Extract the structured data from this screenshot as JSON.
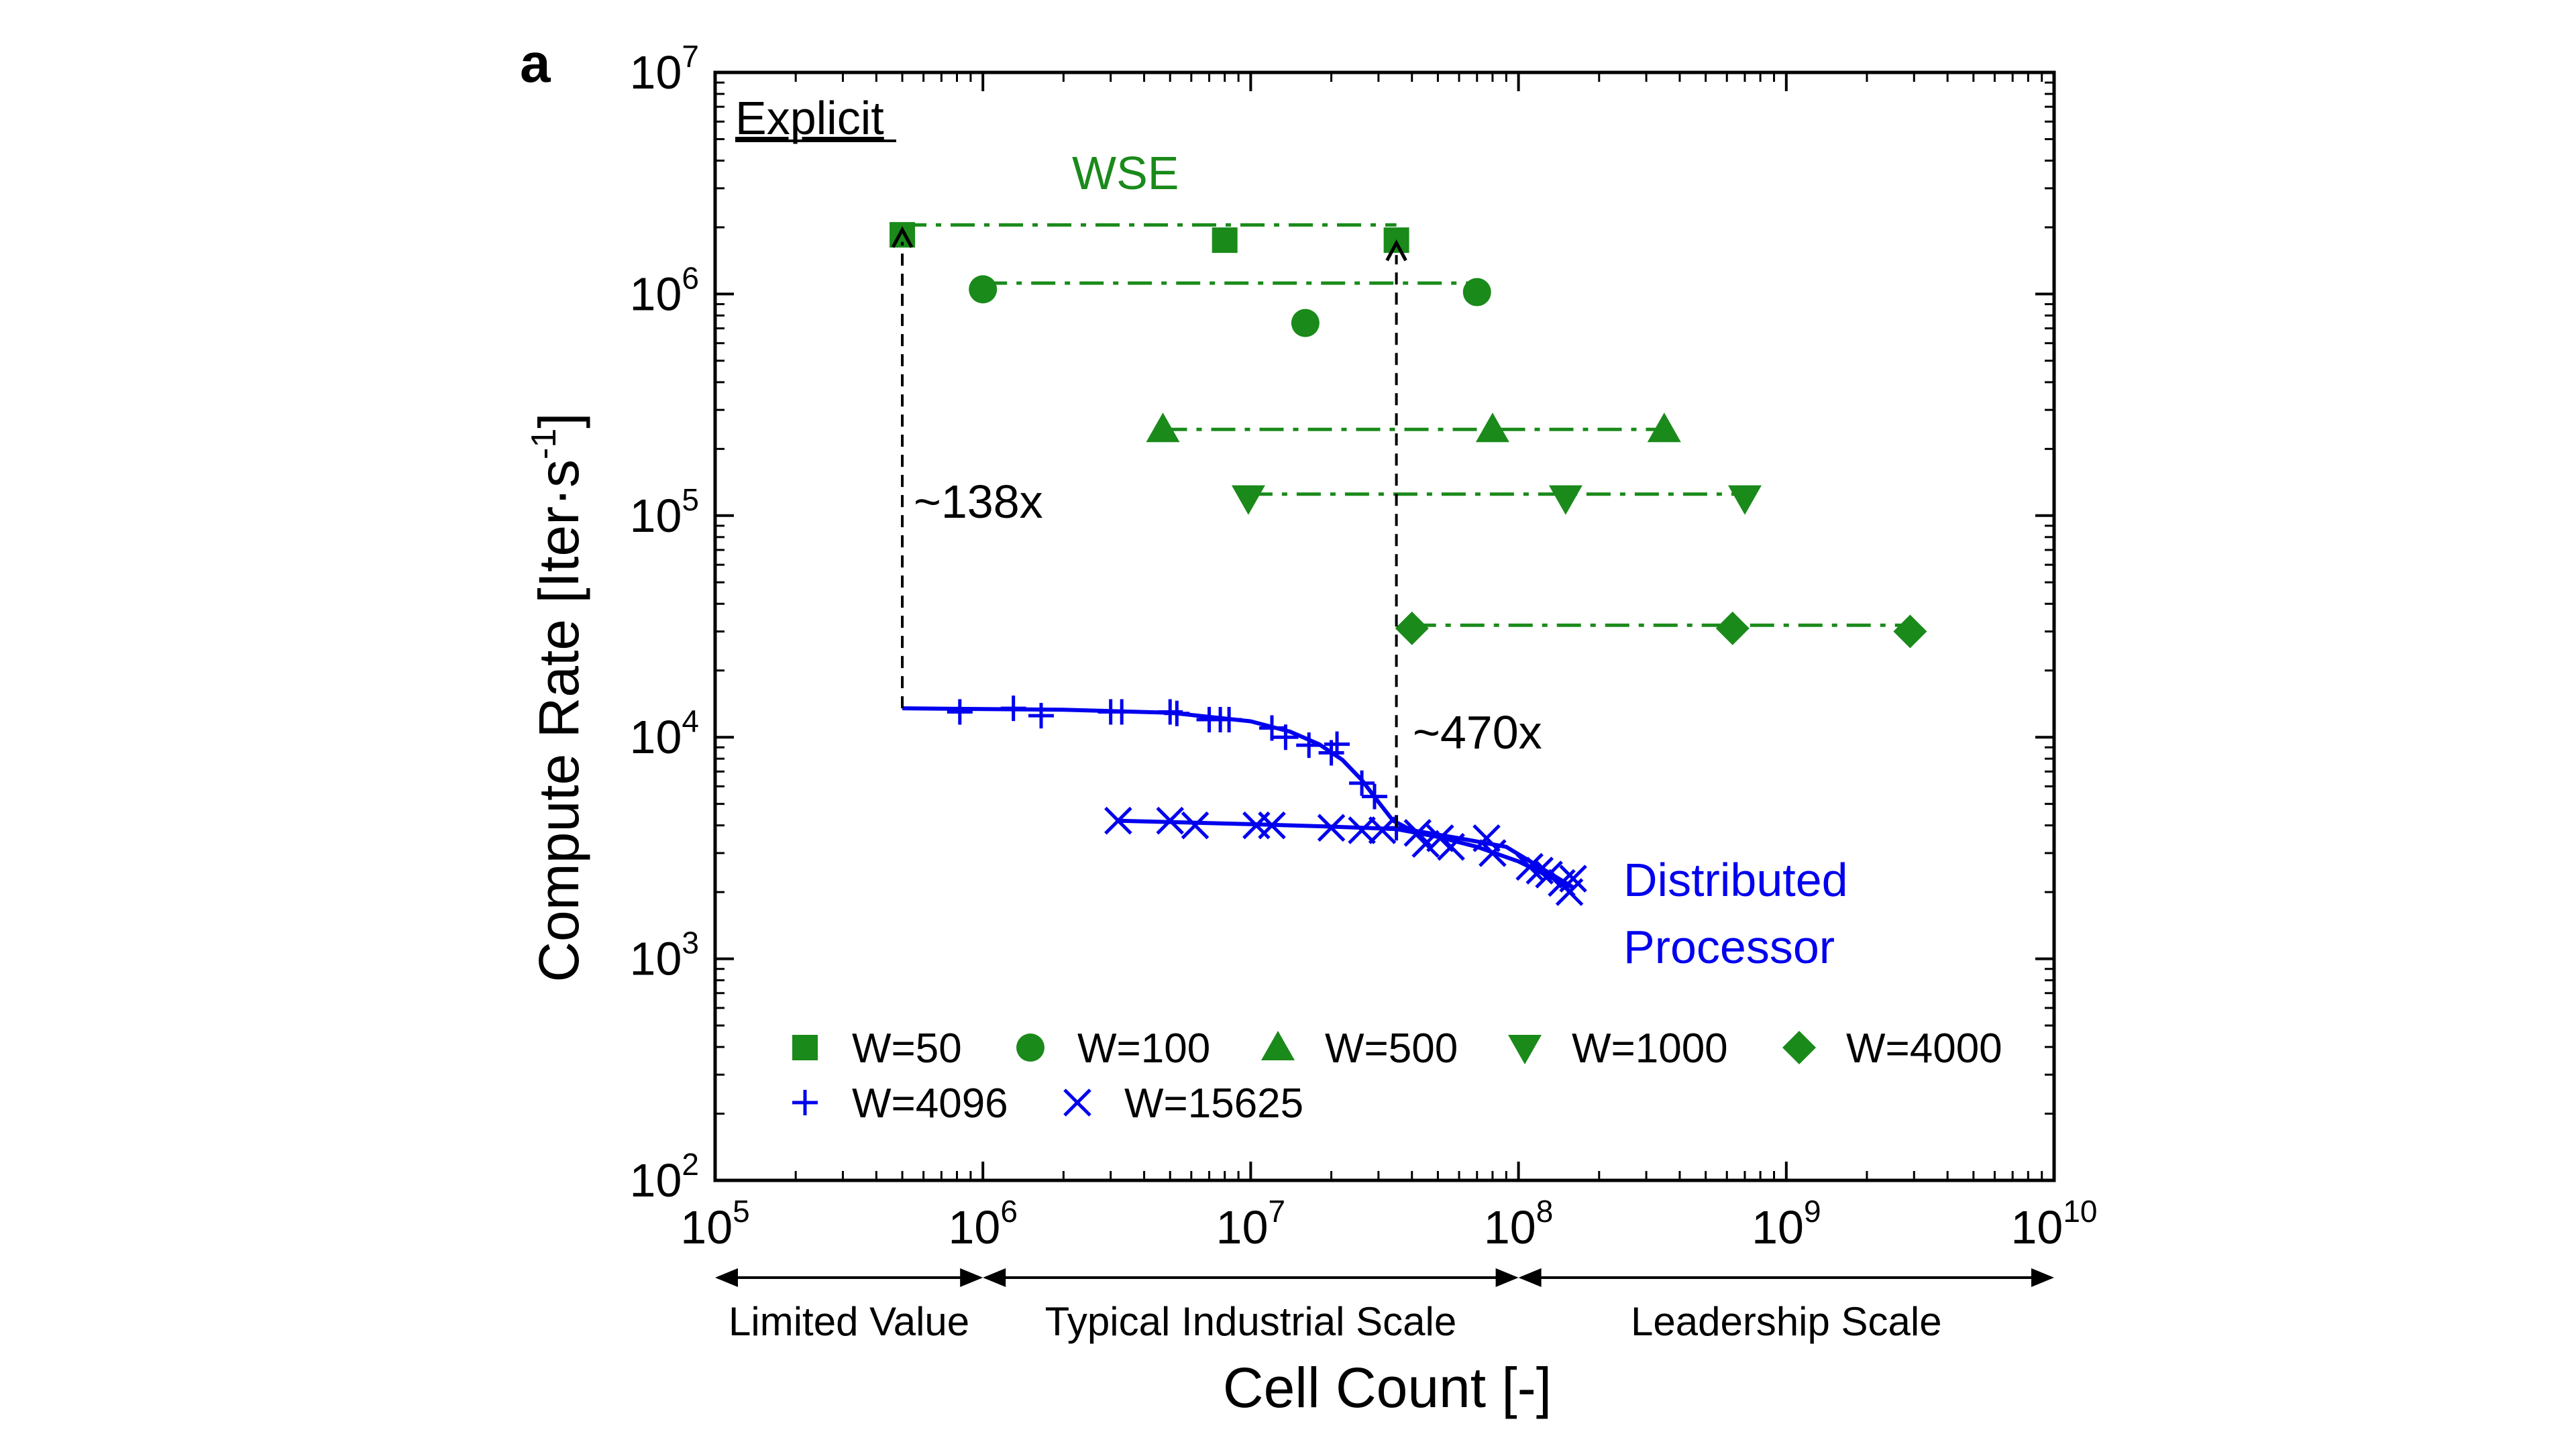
{
  "panel_label": "a",
  "chart_data": {
    "type": "scatter",
    "xscale": "log",
    "yscale": "log",
    "xlim": [
      100000,
      10000000000
    ],
    "ylim": [
      100,
      10000000
    ],
    "xlabel": "Cell Count [-]",
    "ylabel_main": "Compute Rate [Iter·s",
    "ylabel_sup": "-1",
    "ylabel_end": "]",
    "x_ticks": [
      {
        "value": 100000,
        "base": "10",
        "exp": "5"
      },
      {
        "value": 1000000,
        "base": "10",
        "exp": "6"
      },
      {
        "value": 10000000,
        "base": "10",
        "exp": "7"
      },
      {
        "value": 100000000,
        "base": "10",
        "exp": "8"
      },
      {
        "value": 1000000000,
        "base": "10",
        "exp": "9"
      },
      {
        "value": 10000000000,
        "base": "10",
        "exp": "10"
      }
    ],
    "y_ticks": [
      {
        "value": 100,
        "base": "10",
        "exp": "2"
      },
      {
        "value": 1000,
        "base": "10",
        "exp": "3"
      },
      {
        "value": 10000,
        "base": "10",
        "exp": "4"
      },
      {
        "value": 100000,
        "base": "10",
        "exp": "5"
      },
      {
        "value": 1000000,
        "base": "10",
        "exp": "6"
      },
      {
        "value": 10000000,
        "base": "10",
        "exp": "7"
      }
    ],
    "annotations": {
      "explicit": "Explicit",
      "wse": "WSE",
      "distributed_line1": "Distributed",
      "distributed_line2": "Processor",
      "speedup_left": "~138x",
      "speedup_right": "~470x"
    },
    "speedup_markers": [
      {
        "x": 500000,
        "y_from": 13500,
        "y_to": 1950000
      },
      {
        "x": 35000000,
        "y_from": 3900,
        "y_to": 1700000
      }
    ],
    "scale_ranges": [
      {
        "label": "Limited Value",
        "from": 100000,
        "to": 1000000
      },
      {
        "label": "Typical Industrial Scale",
        "from": 1000000,
        "to": 100000000
      },
      {
        "label": "Leadership Scale",
        "from": 100000000,
        "to": 10000000000
      }
    ],
    "colors": {
      "wse": "#1a8a1a",
      "distributed": "#0000ee",
      "axis": "#000000"
    },
    "series": [
      {
        "name": "W=50",
        "group": "wse",
        "marker": "square",
        "points": [
          [
            500000,
            1850000
          ],
          [
            8000000,
            1750000
          ],
          [
            35000000,
            1750000
          ]
        ],
        "line": {
          "x": [
            500000,
            35000000
          ],
          "y": 2050000
        }
      },
      {
        "name": "W=100",
        "group": "wse",
        "marker": "circle",
        "points": [
          [
            1000000,
            1050000
          ],
          [
            16000000,
            740000
          ],
          [
            70000000,
            1020000
          ]
        ],
        "line": {
          "x": [
            1000000,
            70000000
          ],
          "y": 1120000
        }
      },
      {
        "name": "W=500",
        "group": "wse",
        "marker": "triangle-up",
        "points": [
          [
            4700000,
            245000
          ],
          [
            80000000,
            245000
          ],
          [
            350000000,
            245000
          ]
        ],
        "line": {
          "x": [
            4700000,
            350000000
          ],
          "y": 245000
        }
      },
      {
        "name": "W=1000",
        "group": "wse",
        "marker": "triangle-down",
        "points": [
          [
            9800000,
            120000
          ],
          [
            150000000,
            120000
          ],
          [
            700000000,
            120000
          ]
        ],
        "line": {
          "x": [
            9800000,
            700000000
          ],
          "y": 125000
        }
      },
      {
        "name": "W=4000",
        "group": "wse",
        "marker": "diamond",
        "points": [
          [
            40000000,
            31000
          ],
          [
            630000000,
            31000
          ],
          [
            2900000000,
            30000
          ]
        ],
        "line": {
          "x": [
            40000000,
            2900000000
          ],
          "y": 32000
        }
      },
      {
        "name": "W=4096",
        "group": "distributed",
        "marker": "plus",
        "points": [
          [
            820000,
            13000
          ],
          [
            1300000,
            13500
          ],
          [
            1650000,
            12500
          ],
          [
            3000000,
            13000
          ],
          [
            3300000,
            13000
          ],
          [
            5000000,
            13000
          ],
          [
            5300000,
            12800
          ],
          [
            7000000,
            12000
          ],
          [
            7700000,
            12000
          ],
          [
            8300000,
            12000
          ],
          [
            12000000,
            11000
          ],
          [
            13500000,
            10000
          ],
          [
            16500000,
            9200
          ],
          [
            20000000,
            8500
          ],
          [
            21000000,
            9300
          ],
          [
            26000000,
            6200
          ],
          [
            29000000,
            5400
          ],
          [
            35000000,
            3900
          ]
        ],
        "fit": [
          [
            500000,
            13500
          ],
          [
            2000000,
            13300
          ],
          [
            5000000,
            12900
          ],
          [
            10000000,
            11800
          ],
          [
            14000000,
            10600
          ],
          [
            18000000,
            9300
          ],
          [
            22000000,
            7900
          ],
          [
            26000000,
            6400
          ],
          [
            30000000,
            5100
          ],
          [
            34000000,
            4200
          ],
          [
            40000000,
            3800
          ],
          [
            60000000,
            3500
          ],
          [
            90000000,
            3200
          ],
          [
            160000000,
            2100
          ]
        ]
      },
      {
        "name": "W=15625",
        "group": "distributed",
        "marker": "x",
        "points": [
          [
            3200000,
            4200
          ],
          [
            5000000,
            4200
          ],
          [
            6200000,
            4000
          ],
          [
            10500000,
            4000
          ],
          [
            12000000,
            4000
          ],
          [
            20000000,
            3900
          ],
          [
            26000000,
            3800
          ],
          [
            31000000,
            3800
          ],
          [
            42000000,
            3700
          ],
          [
            45000000,
            3300
          ],
          [
            51000000,
            3500
          ],
          [
            56000000,
            3200
          ],
          [
            76000000,
            3500
          ],
          [
            80000000,
            3000
          ],
          [
            110000000,
            2600
          ],
          [
            120000000,
            2500
          ],
          [
            130000000,
            2400
          ],
          [
            145000000,
            2200
          ],
          [
            155000000,
            2000
          ],
          [
            160000000,
            2300
          ]
        ],
        "fit": [
          [
            3200000,
            4200
          ],
          [
            10000000,
            4050
          ],
          [
            20000000,
            3950
          ],
          [
            35000000,
            3850
          ],
          [
            50000000,
            3550
          ],
          [
            70000000,
            3200
          ],
          [
            100000000,
            2750
          ],
          [
            130000000,
            2350
          ],
          [
            160000000,
            2100
          ]
        ]
      }
    ]
  }
}
